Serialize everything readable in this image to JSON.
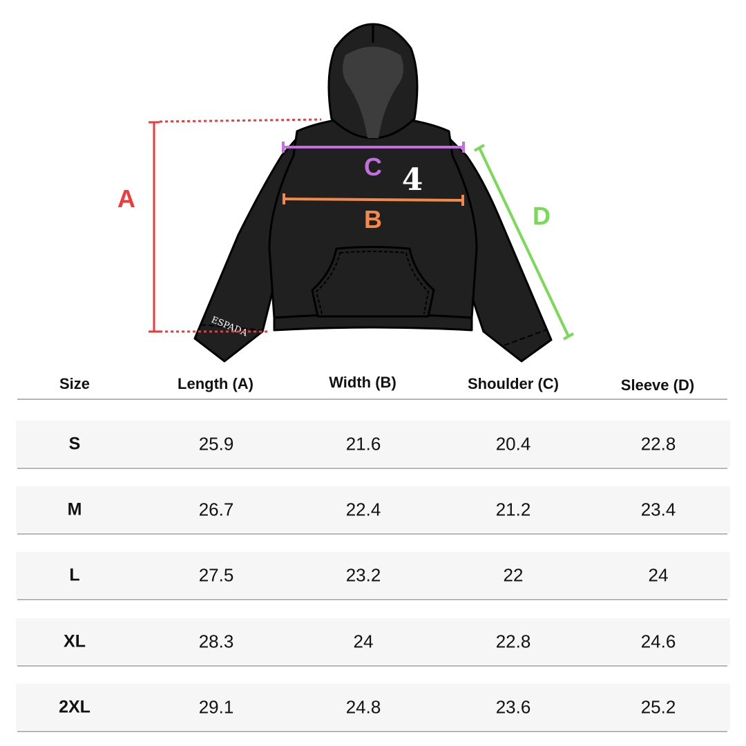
{
  "diagram": {
    "labels": {
      "A": "A",
      "B": "B",
      "C": "C",
      "D": "D"
    },
    "chest_print": "4",
    "sleeve_print": "ESPADA",
    "colors": {
      "A": "#f03a3a",
      "B": "#f5894a",
      "C": "#c56ee0",
      "D": "#7ad957",
      "garment": "#202020"
    }
  },
  "table": {
    "headers": [
      "Size",
      "Length (A)",
      "Width (B)",
      "Shoulder (C)",
      "Sleeve (D)"
    ],
    "rows": [
      [
        "S",
        "25.9",
        "21.6",
        "20.4",
        "22.8"
      ],
      [
        "M",
        "26.7",
        "22.4",
        "21.2",
        "23.4"
      ],
      [
        "L",
        "27.5",
        "23.2",
        "22",
        "24"
      ],
      [
        "XL",
        "28.3",
        "24",
        "22.8",
        "24.6"
      ],
      [
        "2XL",
        "29.1",
        "24.8",
        "23.6",
        "25.2"
      ]
    ]
  }
}
